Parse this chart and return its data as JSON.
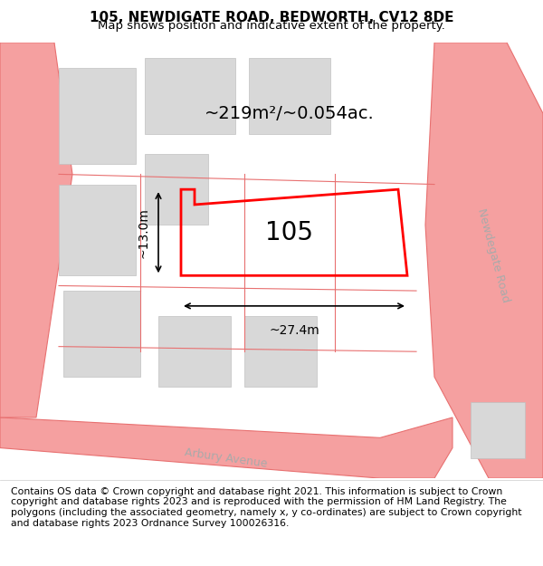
{
  "title": "105, NEWDIGATE ROAD, BEDWORTH, CV12 8DE",
  "subtitle": "Map shows position and indicative extent of the property.",
  "footer": "Contains OS data © Crown copyright and database right 2021. This information is subject to Crown copyright and database rights 2023 and is reproduced with the permission of HM Land Registry. The polygons (including the associated geometry, namely x, y co-ordinates) are subject to Crown copyright and database rights 2023 Ordnance Survey 100026316.",
  "area_label": "~219m²/~0.054ac.",
  "width_label": "~27.4m",
  "height_label": "~13.0m",
  "plot_number": "105",
  "bg_color": "#f5f5f5",
  "map_bg": "#ffffff",
  "road_color": "#f5a0a0",
  "road_line_color": "#e87070",
  "building_color": "#d8d8d8",
  "building_edge": "#c0c0c0",
  "plot_color": "#ff0000",
  "plot_fill": "none",
  "road_label_newdegate": "Newdegate Road",
  "road_label_arbury": "Arbury Avenue",
  "title_fontsize": 11,
  "subtitle_fontsize": 9.5,
  "footer_fontsize": 7.8
}
